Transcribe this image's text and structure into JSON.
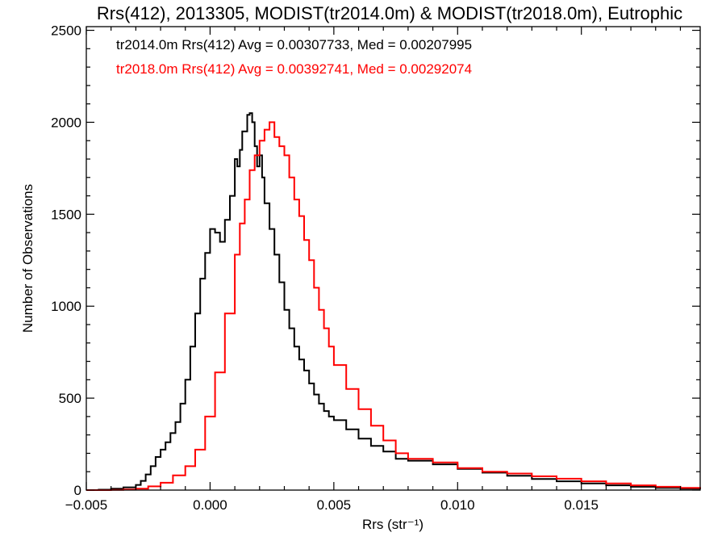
{
  "chart_data": {
    "type": "line",
    "title": "Rrs(412), 2013305, MODIST(tr2014.0m) & MODIST(tr2018.0m), Eutrophic",
    "xlabel": "Rrs (str⁻¹)",
    "ylabel": "Number of Observations",
    "xlim": [
      -0.005,
      0.0198
    ],
    "ylim": [
      0,
      2520
    ],
    "x_ticks": [
      -0.005,
      0.0,
      0.005,
      0.01,
      0.015
    ],
    "x_tick_labels": [
      "−0.005",
      "0.000",
      "0.005",
      "0.010",
      "0.015"
    ],
    "y_ticks": [
      0,
      500,
      1000,
      1500,
      2000,
      2500
    ],
    "y_tick_labels": [
      "0",
      "500",
      "1000",
      "1500",
      "2000",
      "2500"
    ],
    "grid": false,
    "legend_placement": "top-left",
    "series": [
      {
        "label": "tr2014.0m Rrs(412) Avg = 0.00307733, Med = 0.00207995",
        "color": "#000000",
        "x": [
          -0.005,
          -0.0045,
          -0.004,
          -0.0035,
          -0.003,
          -0.0028,
          -0.0026,
          -0.0024,
          -0.0022,
          -0.002,
          -0.0018,
          -0.0016,
          -0.0014,
          -0.0012,
          -0.001,
          -0.0008,
          -0.0006,
          -0.0004,
          -0.0002,
          0.0,
          0.0002,
          0.0004,
          0.0006,
          0.0008,
          0.001,
          0.0011,
          0.0012,
          0.0013,
          0.0014,
          0.0015,
          0.0016,
          0.0017,
          0.0018,
          0.0019,
          0.002,
          0.0021,
          0.0022,
          0.0024,
          0.0026,
          0.0028,
          0.003,
          0.0032,
          0.0034,
          0.0036,
          0.0038,
          0.004,
          0.0042,
          0.0044,
          0.0046,
          0.0048,
          0.005,
          0.0055,
          0.006,
          0.0065,
          0.007,
          0.0075,
          0.008,
          0.009,
          0.01,
          0.011,
          0.012,
          0.013,
          0.014,
          0.015,
          0.016,
          0.017,
          0.018,
          0.019,
          0.0198
        ],
        "y": [
          0,
          2,
          8,
          15,
          28,
          50,
          85,
          130,
          180,
          220,
          260,
          310,
          370,
          470,
          600,
          780,
          960,
          1150,
          1290,
          1420,
          1400,
          1350,
          1470,
          1600,
          1800,
          1760,
          1850,
          1950,
          1950,
          2040,
          2050,
          2000,
          1870,
          1760,
          1820,
          1700,
          1560,
          1420,
          1280,
          1130,
          980,
          880,
          780,
          710,
          650,
          580,
          520,
          470,
          430,
          400,
          380,
          330,
          280,
          240,
          210,
          170,
          160,
          140,
          115,
          95,
          78,
          60,
          48,
          36,
          26,
          18,
          12,
          8,
          5
        ]
      },
      {
        "label": "tr2018.0m Rrs(412) Avg = 0.00392741, Med = 0.00292074",
        "color": "#ff0000",
        "x": [
          -0.005,
          -0.0045,
          -0.004,
          -0.0035,
          -0.003,
          -0.0025,
          -0.002,
          -0.0015,
          -0.001,
          -0.0006,
          -0.0002,
          0.0002,
          0.0006,
          0.001,
          0.0012,
          0.0014,
          0.0016,
          0.0018,
          0.002,
          0.0022,
          0.0024,
          0.0026,
          0.0028,
          0.003,
          0.0032,
          0.0034,
          0.0036,
          0.0038,
          0.004,
          0.0042,
          0.0044,
          0.0046,
          0.0048,
          0.005,
          0.0055,
          0.006,
          0.0065,
          0.007,
          0.0075,
          0.008,
          0.009,
          0.01,
          0.011,
          0.012,
          0.013,
          0.014,
          0.015,
          0.016,
          0.017,
          0.018,
          0.019,
          0.0198
        ],
        "y": [
          0,
          0,
          1,
          3,
          8,
          20,
          40,
          80,
          130,
          220,
          400,
          640,
          960,
          1280,
          1450,
          1580,
          1740,
          1820,
          1900,
          1960,
          2000,
          1920,
          1870,
          1820,
          1700,
          1580,
          1490,
          1360,
          1250,
          1100,
          980,
          880,
          780,
          680,
          550,
          440,
          350,
          270,
          200,
          170,
          150,
          120,
          100,
          90,
          75,
          62,
          48,
          36,
          26,
          18,
          12,
          8
        ]
      }
    ]
  }
}
